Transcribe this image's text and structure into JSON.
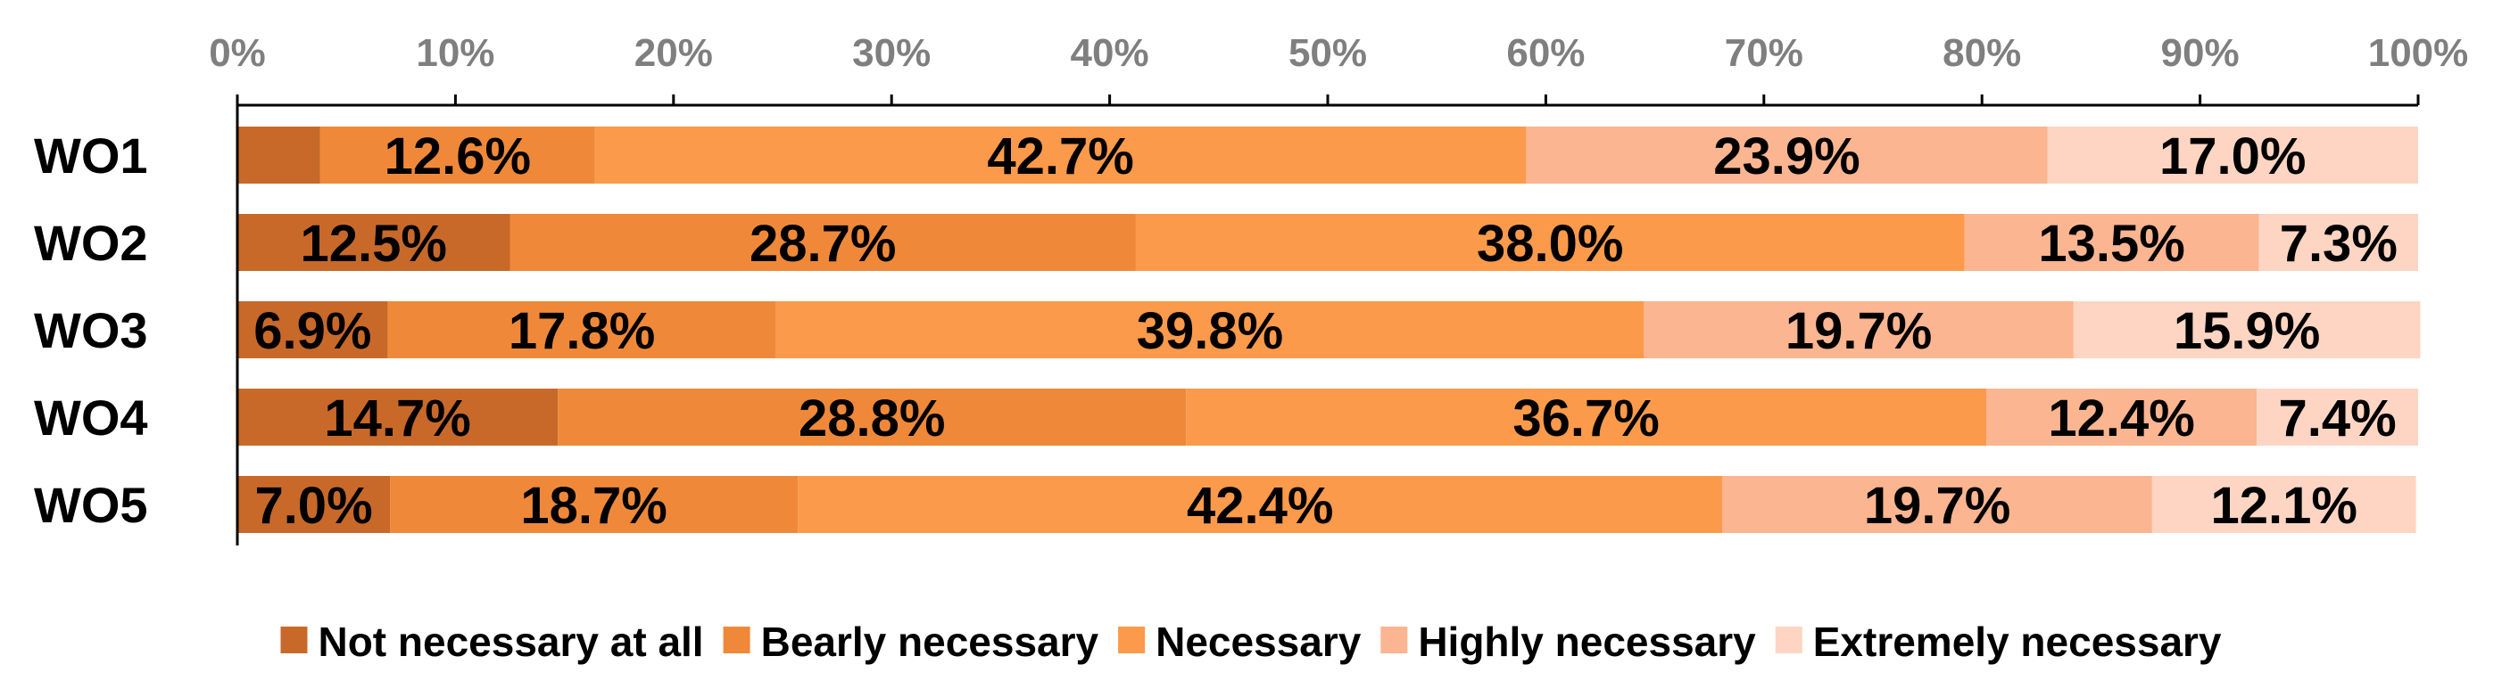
{
  "chart_data": {
    "type": "bar",
    "orientation": "horizontal",
    "stacked": "100%",
    "categories": [
      "WO1",
      "WO2",
      "WO3",
      "WO4",
      "WO5"
    ],
    "series": [
      {
        "name": "Not necessary at all",
        "color": "#c8692a",
        "values": [
          3.8,
          12.5,
          6.9,
          14.7,
          7.0
        ],
        "labels": [
          "",
          "12.5%",
          "6.9%",
          "14.7%",
          "7.0%"
        ]
      },
      {
        "name": "Bearly necessary",
        "color": "#ef8939",
        "values": [
          12.6,
          28.7,
          17.8,
          28.8,
          18.7
        ],
        "labels": [
          "12.6%",
          "28.7%",
          "17.8%",
          "28.8%",
          "18.7%"
        ]
      },
      {
        "name": "Necessary",
        "color": "#fb9a4a",
        "values": [
          42.7,
          38.0,
          39.8,
          36.7,
          42.4
        ],
        "labels": [
          "42.7%",
          "38.0%",
          "39.8%",
          "36.7%",
          "42.4%"
        ]
      },
      {
        "name": "Highly necessary",
        "color": "#fbb590",
        "values": [
          23.9,
          13.5,
          19.7,
          12.4,
          19.7
        ],
        "labels": [
          "23.9%",
          "13.5%",
          "19.7%",
          "12.4%",
          "19.7%"
        ]
      },
      {
        "name": "Extremely necessary",
        "color": "#fdd5c2",
        "values": [
          17.0,
          7.3,
          15.9,
          7.4,
          12.1
        ],
        "labels": [
          "17.0%",
          "7.3%",
          "15.9%",
          "7.4%",
          "12.1%"
        ]
      }
    ],
    "x_ticks": [
      "0%",
      "10%",
      "20%",
      "30%",
      "40%",
      "50%",
      "60%",
      "70%",
      "80%",
      "90%",
      "100%"
    ],
    "xlim": [
      0,
      100
    ],
    "x_axis_position": "top",
    "grid": false,
    "legend_position": "bottom"
  }
}
